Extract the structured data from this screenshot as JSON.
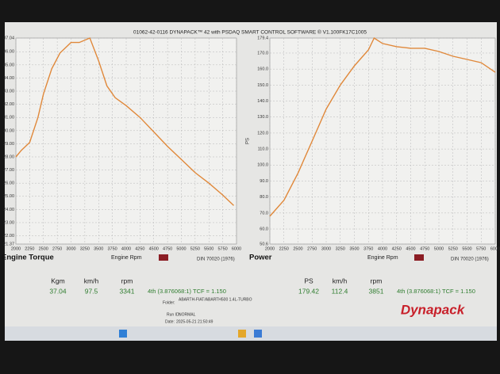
{
  "header": {
    "title": "01062-42-0116 DYNAPACK™ 42 with PSDAQ SMART CONTROL SOFTWARE ® V1.100FK17C1005"
  },
  "chart_data": [
    {
      "type": "line",
      "title": "Engine Torque",
      "x_label": "Engine Rpm",
      "note": "DIN 70020 (1976)",
      "color": "#e0883a",
      "grid": true,
      "x": [
        2000,
        2100,
        2250,
        2400,
        2500,
        2650,
        2800,
        3000,
        3150,
        3341,
        3500,
        3650,
        3800,
        4000,
        4250,
        4500,
        4750,
        5000,
        5250,
        5500,
        5750,
        5950
      ],
      "values": [
        28.0,
        28.5,
        29.1,
        31.0,
        32.8,
        34.7,
        35.9,
        36.7,
        36.7,
        37.04,
        35.3,
        33.4,
        32.5,
        31.9,
        31.0,
        29.9,
        28.8,
        27.8,
        26.8,
        26.0,
        25.1,
        24.3
      ],
      "xlim": [
        2000,
        6000
      ],
      "xticks": [
        2000,
        2250,
        2500,
        2750,
        3000,
        3250,
        3500,
        3750,
        4000,
        4250,
        4500,
        4750,
        5000,
        5250,
        5500,
        5750,
        6000
      ],
      "ylim": [
        21.37,
        37.04
      ],
      "yticks": [
        {
          "value": 21.37,
          "label": "21.37"
        },
        {
          "value": 22,
          "label": "22.00"
        },
        {
          "value": 23,
          "label": "23.00"
        },
        {
          "value": 24,
          "label": "24.00"
        },
        {
          "value": 25,
          "label": "25.00"
        },
        {
          "value": 26,
          "label": "26.00"
        },
        {
          "value": 27,
          "label": "27.00"
        },
        {
          "value": 28,
          "label": "28.00"
        },
        {
          "value": 29,
          "label": "29.00"
        },
        {
          "value": 30,
          "label": "30.00"
        },
        {
          "value": 31,
          "label": "31.00"
        },
        {
          "value": 32,
          "label": "32.00"
        },
        {
          "value": 33,
          "label": "33.00"
        },
        {
          "value": 34,
          "label": "34.00"
        },
        {
          "value": 35,
          "label": "35.00"
        },
        {
          "value": 36,
          "label": "36.00"
        },
        {
          "value": 37.04,
          "label": "37.04"
        }
      ]
    },
    {
      "type": "line",
      "title": "Power",
      "x_label": "Engine Rpm",
      "ylabel": "PS",
      "note": "DIN 70020 (1976)",
      "color": "#e0883a",
      "grid": true,
      "x": [
        2000,
        2250,
        2500,
        2750,
        3000,
        3250,
        3500,
        3750,
        3851,
        4000,
        4250,
        4500,
        4750,
        5000,
        5250,
        5500,
        5750,
        6000
      ],
      "values": [
        68,
        78,
        95,
        115,
        135,
        150,
        162,
        172,
        179.42,
        176,
        174,
        173,
        173,
        171,
        168,
        166,
        164,
        158
      ],
      "xlim": [
        2000,
        6000
      ],
      "xticks": [
        2000,
        2250,
        2500,
        2750,
        3000,
        3250,
        3500,
        3750,
        4000,
        4250,
        4500,
        4750,
        5000,
        5250,
        5500,
        5750,
        6000
      ],
      "ylim": [
        50.6,
        179.4
      ],
      "yticks": [
        {
          "value": 50.6,
          "label": "50.6"
        },
        {
          "value": 60,
          "label": "60.0"
        },
        {
          "value": 70,
          "label": "70.0"
        },
        {
          "value": 80,
          "label": "80.0"
        },
        {
          "value": 90,
          "label": "90.0"
        },
        {
          "value": 100,
          "label": "100.0"
        },
        {
          "value": 110,
          "label": "110.0"
        },
        {
          "value": 120,
          "label": "120.0"
        },
        {
          "value": 130,
          "label": "130.0"
        },
        {
          "value": 140,
          "label": "140.0"
        },
        {
          "value": 150,
          "label": "150.0"
        },
        {
          "value": 160,
          "label": "160.0"
        },
        {
          "value": 170,
          "label": "170.0"
        },
        {
          "value": 179.4,
          "label": "179.4"
        }
      ]
    }
  ],
  "readouts": [
    {
      "labels": [
        "Kgm",
        "km/h",
        "rpm"
      ],
      "values": [
        "37.04",
        "97.5",
        "3341"
      ],
      "gear": "4th (3.876068:1)  TCF = 1.150"
    },
    {
      "labels": [
        "PS",
        "km/h",
        "rpm"
      ],
      "values": [
        "179.42",
        "112.4",
        "3851"
      ],
      "gear": "4th (3.876068:1)  TCF = 1.150"
    }
  ],
  "info": {
    "folder_label": "Folder:",
    "folder": "ABARTH-FIAT/ABARTH500 1.4L-TURBO",
    "run_label": "Run ID:",
    "run": "NORMAL",
    "date_label": "Date:",
    "date": "2025-05-21 21:50:49"
  },
  "logo": "Dynapack"
}
